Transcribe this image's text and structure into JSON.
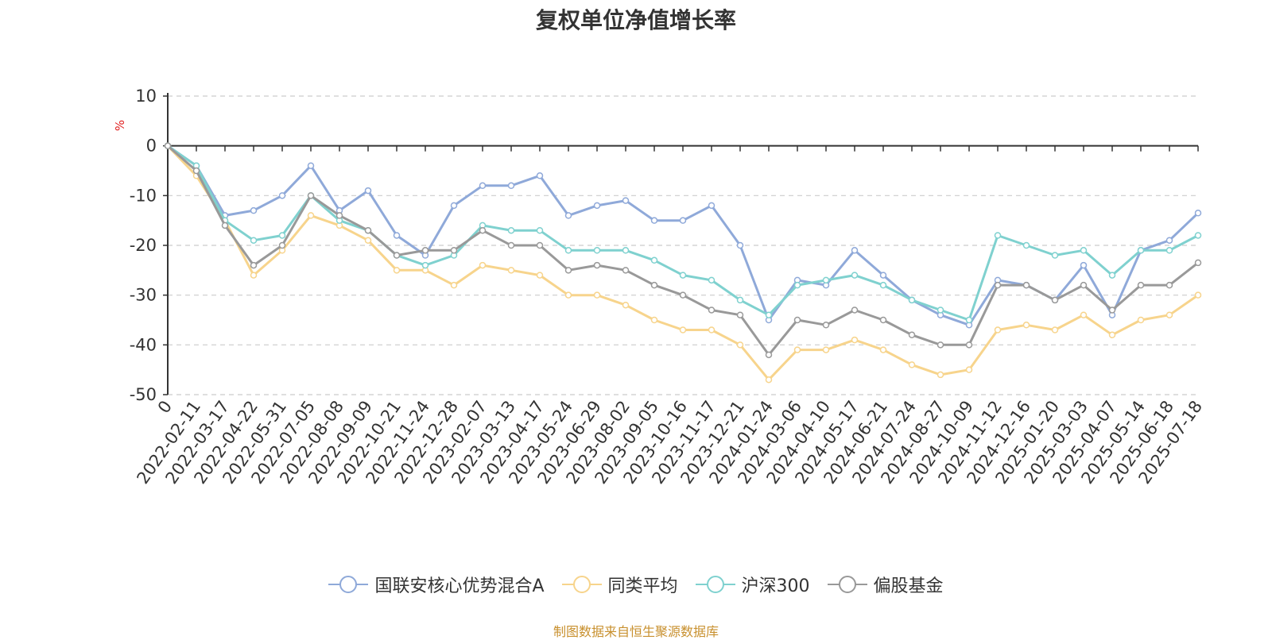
{
  "chart_data": {
    "type": "line",
    "title": "复权单位净值增长率",
    "ylabel": "%",
    "ylim": [
      -50,
      10
    ],
    "yticks": [
      10,
      0,
      -10,
      -20,
      -30,
      -40,
      -50
    ],
    "x_origin_label": "0",
    "x": [
      "2022-02-11",
      "2022-03-17",
      "2022-04-22",
      "2022-05-31",
      "2022-07-05",
      "2022-08-08",
      "2022-09-09",
      "2022-10-21",
      "2022-11-24",
      "2022-12-28",
      "2023-02-07",
      "2023-03-13",
      "2023-04-17",
      "2023-05-24",
      "2023-06-29",
      "2023-08-02",
      "2023-09-05",
      "2023-10-16",
      "2023-11-17",
      "2023-12-21",
      "2024-01-24",
      "2024-03-06",
      "2024-04-10",
      "2024-05-17",
      "2024-06-21",
      "2024-07-24",
      "2024-08-27",
      "2024-10-09",
      "2024-11-12",
      "2024-12-16",
      "2025-01-20",
      "2025-03-03",
      "2025-04-07",
      "2025-05-14",
      "2025-06-18",
      "2025-07-18"
    ],
    "grid": true,
    "legend_position": "bottom",
    "series": [
      {
        "name": "国联安核心优势混合A",
        "color": "#8fa9d9",
        "values": [
          -4,
          -14,
          -13,
          -10,
          -4,
          -13,
          -9,
          -18,
          -22,
          -12,
          -8,
          -8,
          -6,
          -14,
          -12,
          -11,
          -15,
          -15,
          -12,
          -20,
          -35,
          -27,
          -28,
          -21,
          -26,
          -31,
          -34,
          -36,
          -27,
          -28,
          -31,
          -24,
          -34,
          -21,
          -19,
          -13.5
        ]
      },
      {
        "name": "同类平均",
        "color": "#f7d48c",
        "values": [
          -6,
          -15,
          -26,
          -21,
          -14,
          -16,
          -19,
          -25,
          -25,
          -28,
          -24,
          -25,
          -26,
          -30,
          -30,
          -32,
          -35,
          -37,
          -37,
          -40,
          -47,
          -41,
          -41,
          -39,
          -41,
          -44,
          -46,
          -45,
          -37,
          -36,
          -37,
          -34,
          -38,
          -35,
          -34,
          -30
        ]
      },
      {
        "name": "沪深300",
        "color": "#7fd1cf",
        "values": [
          -4,
          -15,
          -19,
          -18,
          -10,
          -15,
          -17,
          -22,
          -24,
          -22,
          -16,
          -17,
          -17,
          -21,
          -21,
          -21,
          -23,
          -26,
          -27,
          -31,
          -34,
          -28,
          -27,
          -26,
          -28,
          -31,
          -33,
          -35,
          -18,
          -20,
          -22,
          -21,
          -26,
          -21,
          -21,
          -18
        ]
      },
      {
        "name": "偏股基金",
        "color": "#999999",
        "values": [
          -5,
          -16,
          -24,
          -20,
          -10,
          -14,
          -17,
          -22,
          -21,
          -21,
          -17,
          -20,
          -20,
          -25,
          -24,
          -25,
          -28,
          -30,
          -33,
          -34,
          -42,
          -35,
          -36,
          -33,
          -35,
          -38,
          -40,
          -40,
          -28,
          -28,
          -31,
          -28,
          -33,
          -28,
          -28,
          -23.5
        ]
      }
    ]
  },
  "source_note": "制图数据来自恒生聚源数据库"
}
